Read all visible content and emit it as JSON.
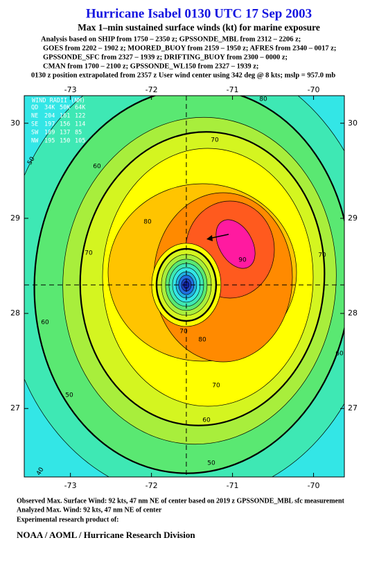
{
  "header": {
    "title": "Hurricane Isabel 0130 UTC 17 Sep 2003",
    "subtitle": "Max 1–min sustained surface winds (kt) for marine exposure",
    "notes": [
      "Analysis based on  SHIP from 1750 – 2350 z;  GPSSONDE_MBL from 2312 – 2206 z;",
      "GOES from 2202 – 1902 z;  MOORED_BUOY from 2159 – 1950 z;  AFRES from 2340 – 0017 z;",
      "GPSSONDE_SFC from 2327 – 1939 z;  DRIFTING_BUOY from 2300 – 0000 z;",
      "CMAN from 1700 – 2100 z;  GPSSONDE_WL150 from 2327 – 1939 z;",
      "0130 z position extrapolated from 2357 z User wind center using 342 deg @ 8 kts; mslp = 957.0 mb"
    ]
  },
  "map": {
    "xlim": [
      -73.57,
      -69.62
    ],
    "ylim": [
      26.28,
      30.29
    ],
    "xticks": [
      -73,
      -72,
      -71,
      -70
    ],
    "yticks": [
      27,
      28,
      29,
      30
    ],
    "background_color": "#33e6e6",
    "contour_levels": [
      40,
      50,
      60,
      65,
      70,
      75,
      80,
      85,
      90
    ],
    "contour_colors": [
      "#3ee8b4",
      "#5ae872",
      "#a8ee3c",
      "#d4f520",
      "#ffff00",
      "#ffc400",
      "#ff8a00",
      "#ff5a1e",
      "#ff1aa0"
    ],
    "contour_labels": [
      80,
      70,
      60,
      50,
      80,
      90,
      70,
      70,
      60,
      80,
      70,
      60,
      50,
      70,
      60,
      50,
      40
    ],
    "wind_radii": {
      "title": "WIND RADII (NM)",
      "header": [
        "QD",
        "34K",
        "50K",
        "64K"
      ],
      "rows": [
        [
          "NE",
          "204",
          "161",
          "122"
        ],
        [
          "SE",
          "197",
          "156",
          "114"
        ],
        [
          "SW",
          "189",
          "137",
          "85"
        ],
        [
          "NW",
          "195",
          "150",
          "105"
        ]
      ]
    }
  },
  "footer": {
    "lines": [
      "Observed Max. Surface Wind: 92 kts, 47 nm NE of center based on 2019 z GPSSONDE_MBL sfc measurement",
      "Analyzed Max. Wind: 92 kts, 47 nm NE of center",
      "Experimental research product of:"
    ],
    "org": "NOAA / AOML / Hurricane Research Division"
  }
}
